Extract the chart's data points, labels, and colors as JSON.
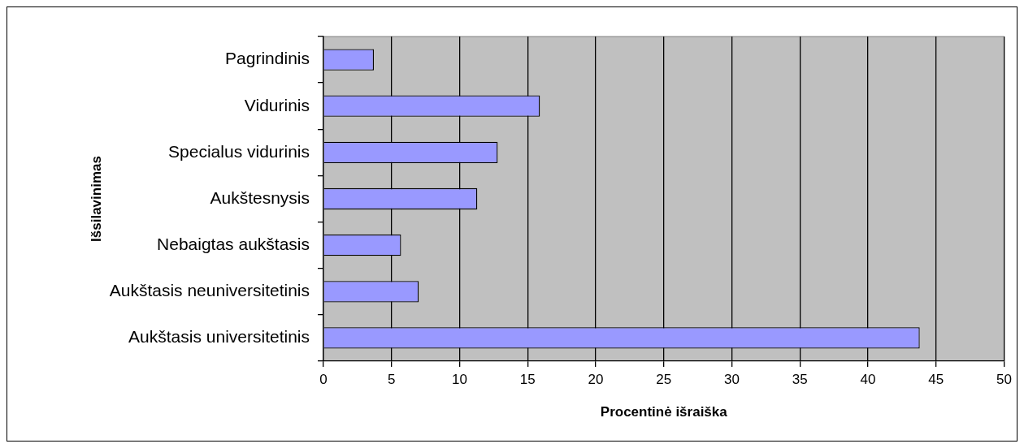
{
  "chart_data": {
    "type": "bar",
    "orientation": "horizontal",
    "xlabel": "Procentinė išraiška",
    "ylabel": "Išsilavinimas",
    "categories": [
      "Pagrindinis",
      "Vidurinis",
      "Specialus vidurinis",
      "Aukštesnysis",
      "Nebaigtas aukštasis",
      "Aukštasis neuniversitetinis",
      "Aukštasis universitetinis"
    ],
    "values": [
      3.7,
      15.9,
      12.8,
      11.3,
      5.7,
      7.0,
      43.8
    ],
    "color": "#9999ff",
    "xlim": [
      0,
      50
    ],
    "xticks": [
      0,
      5,
      10,
      15,
      20,
      25,
      30,
      35,
      40,
      45,
      50
    ],
    "grid": "x",
    "legend": false
  }
}
